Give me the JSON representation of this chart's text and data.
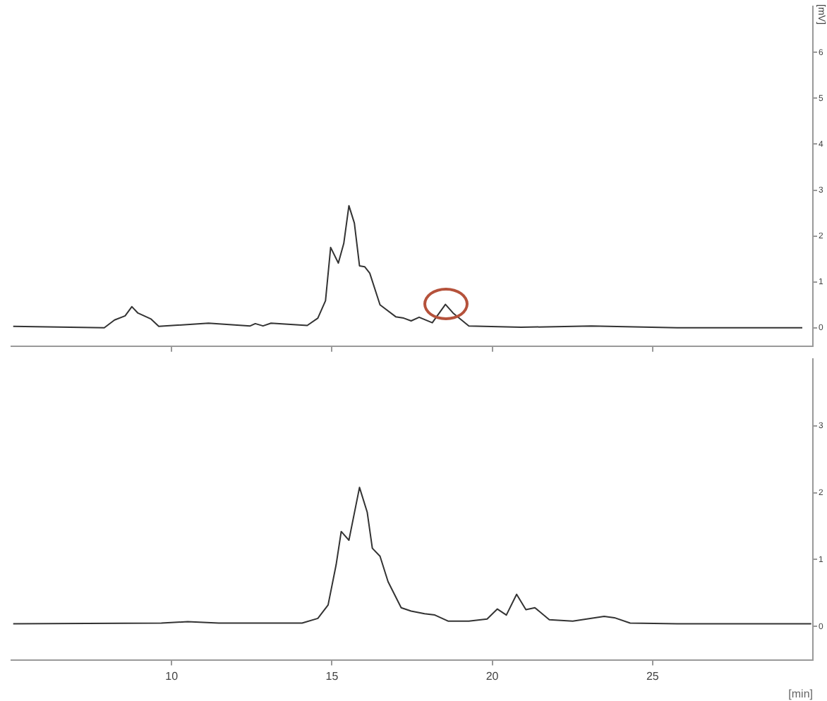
{
  "chart_data": [
    {
      "type": "line",
      "ylabel": "[mV]",
      "x": [
        5.06,
        7.9,
        8.22,
        8.55,
        8.76,
        8.95,
        9.36,
        9.6,
        11.15,
        12.45,
        12.61,
        12.85,
        13.1,
        14.23,
        14.56,
        14.8,
        14.96,
        15.2,
        15.37,
        15.53,
        15.7,
        15.86,
        16.02,
        16.18,
        16.5,
        16.99,
        17.24,
        17.47,
        17.72,
        18.13,
        18.54,
        18.78,
        19.27,
        20.9,
        23.09,
        25.77,
        29.67
      ],
      "series": [
        {
          "color": "#333333",
          "values": [
            0.03,
            0,
            0.17,
            0.26,
            0.46,
            0.32,
            0.19,
            0.03,
            0.1,
            0.04,
            0.09,
            0.04,
            0.1,
            0.05,
            0.21,
            0.59,
            1.75,
            1.41,
            1.84,
            2.66,
            2.28,
            1.35,
            1.33,
            1.19,
            0.5,
            0.24,
            0.21,
            0.15,
            0.23,
            0.11,
            0.51,
            0.32,
            0.04,
            0.01,
            0.04,
            0,
            0
          ]
        }
      ],
      "xlim": [
        5,
        30
      ],
      "xticks": [
        10,
        15,
        20,
        25
      ],
      "ylim": [
        -0.4,
        7
      ],
      "yticks": [
        0,
        1,
        2,
        3,
        4,
        5,
        6
      ],
      "grid": false,
      "legend": false,
      "marker": "none",
      "line_style": "solid",
      "tick_labels": "y"
    },
    {
      "type": "line",
      "xlabel": "[min]",
      "x": [
        5.06,
        9.68,
        10.5,
        11.47,
        14.07,
        14.56,
        14.88,
        15.13,
        15.29,
        15.53,
        15.86,
        16.1,
        16.26,
        16.5,
        16.75,
        17.16,
        17.47,
        17.89,
        18.21,
        18.62,
        19.27,
        19.84,
        20.16,
        20.44,
        20.76,
        21.05,
        21.33,
        21.78,
        22.51,
        23.49,
        23.81,
        24.3,
        25.77,
        29.95
      ],
      "series": [
        {
          "color": "#333333",
          "values": [
            0.04,
            0.05,
            0.07,
            0.05,
            0.05,
            0.12,
            0.32,
            0.92,
            1.42,
            1.29,
            2.08,
            1.71,
            1.17,
            1.05,
            0.67,
            0.28,
            0.23,
            0.19,
            0.17,
            0.08,
            0.08,
            0.11,
            0.26,
            0.17,
            0.48,
            0.25,
            0.28,
            0.1,
            0.08,
            0.15,
            0.13,
            0.05,
            0.04,
            0.04
          ]
        }
      ],
      "xlim": [
        5,
        30
      ],
      "xticks": [
        10,
        15,
        20,
        25
      ],
      "ylim": [
        -0.5,
        4
      ],
      "yticks": [
        0,
        1,
        2,
        3
      ],
      "grid": false,
      "legend": false,
      "marker": "none",
      "line_style": "solid"
    }
  ]
}
